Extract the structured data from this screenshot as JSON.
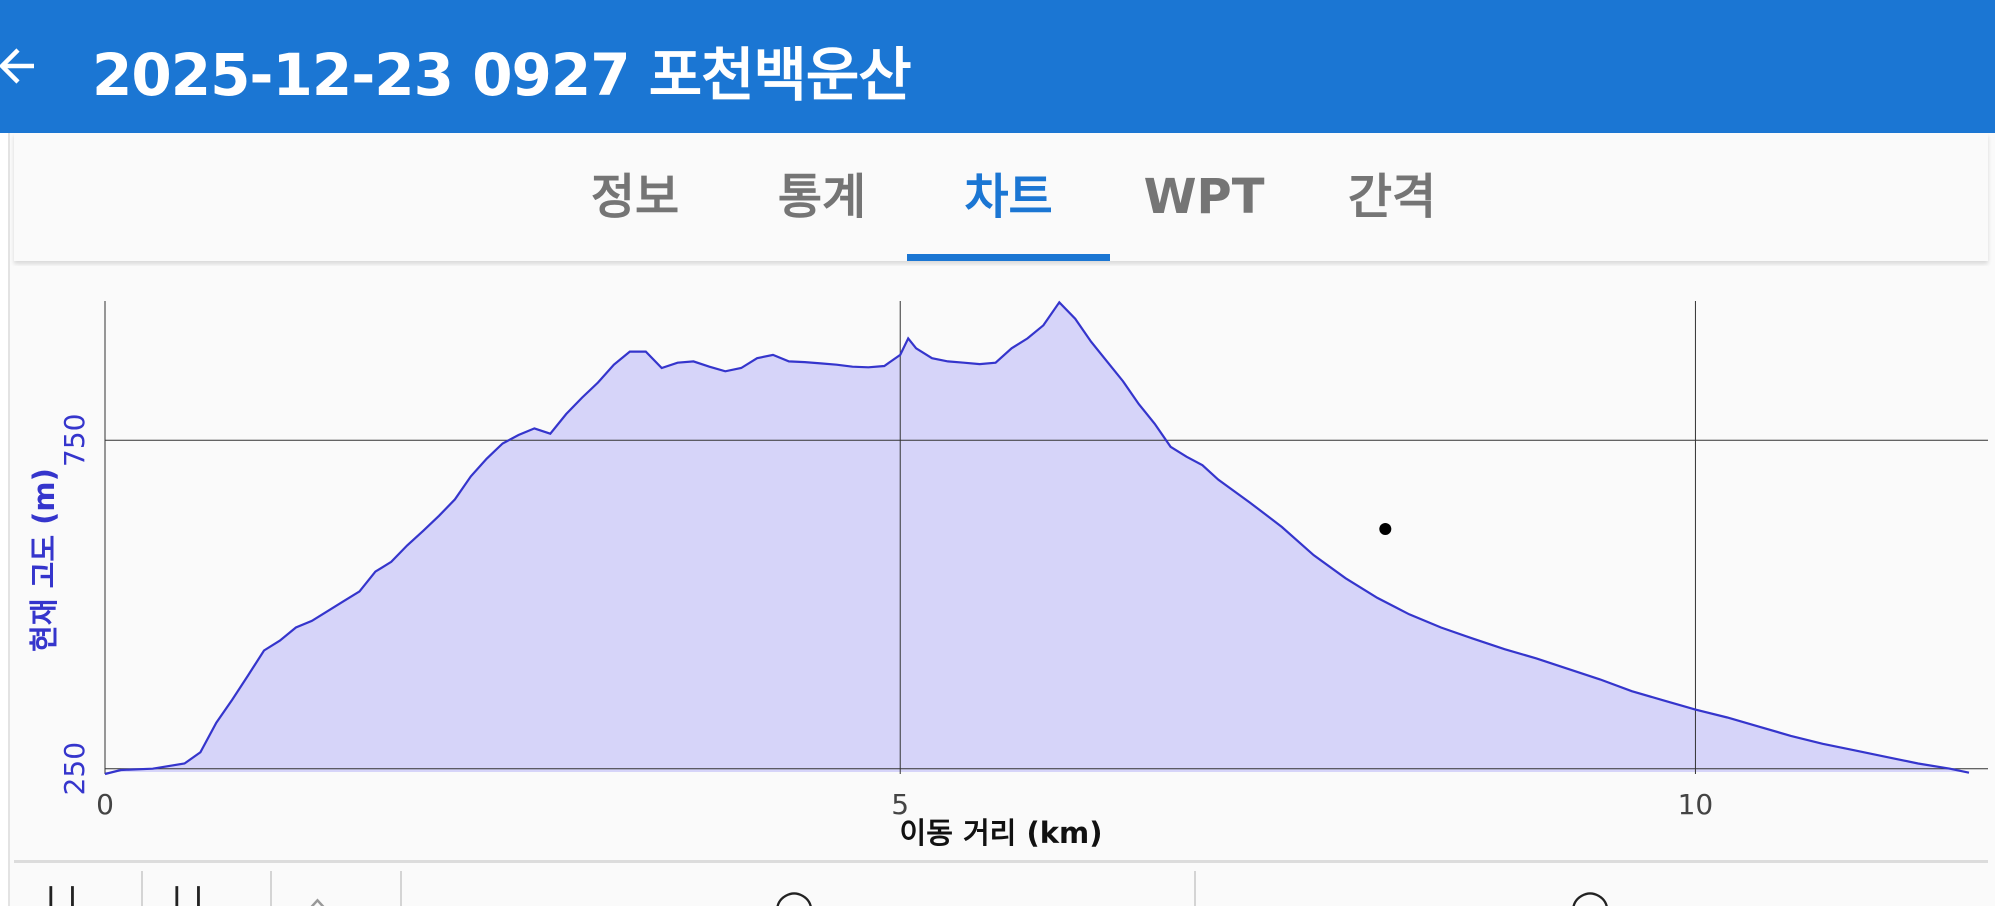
{
  "app_bar": {
    "title": "2025-12-23 0927 포천백운산",
    "back_icon": "arrow-left-icon",
    "background": "#1b76d3"
  },
  "tabs": [
    {
      "label": "정보",
      "active": false
    },
    {
      "label": "통계",
      "active": false
    },
    {
      "label": "차트",
      "active": true
    },
    {
      "label": "WPT",
      "active": false
    },
    {
      "label": "간격",
      "active": false
    }
  ],
  "colors": {
    "accent": "#1b76d3",
    "series_line": "#3535cc",
    "series_fill": "#d6d4f9",
    "ylabel": "#3535cc"
  },
  "chart_data": {
    "type": "area",
    "title": "",
    "xlabel": "이동 거리 (km)",
    "ylabel": "현재 고도 (m)",
    "xlim": [
      0,
      11.72
    ],
    "ylim": [
      245,
      962
    ],
    "x_ticks": [
      0,
      5,
      10
    ],
    "y_ticks": [
      250,
      750
    ],
    "grid": true,
    "series": [
      {
        "x": [
          0,
          0.1,
          0.3,
          0.5,
          0.6,
          0.7,
          0.8,
          0.9,
          1.0,
          1.1,
          1.2,
          1.3,
          1.4,
          1.5,
          1.6,
          1.7,
          1.8,
          1.9,
          2.0,
          2.1,
          2.2,
          2.3,
          2.4,
          2.5,
          2.6,
          2.7,
          2.8,
          2.9,
          3.0,
          3.1,
          3.2,
          3.3,
          3.4,
          3.5,
          3.6,
          3.7,
          3.8,
          3.9,
          4.0,
          4.1,
          4.2,
          4.3,
          4.4,
          4.5,
          4.6,
          4.7,
          4.8,
          4.9,
          5.0,
          5.05,
          5.1,
          5.2,
          5.3,
          5.4,
          5.5,
          5.6,
          5.7,
          5.8,
          5.9,
          6.0,
          6.1,
          6.2,
          6.3,
          6.4,
          6.5,
          6.6,
          6.7,
          6.8,
          6.9,
          7.0,
          7.2,
          7.4,
          7.6,
          7.8,
          8.0,
          8.2,
          8.4,
          8.6,
          8.8,
          9.0,
          9.2,
          9.4,
          9.6,
          9.8,
          10.0,
          10.2,
          10.4,
          10.6,
          10.8,
          11.0,
          11.2,
          11.4,
          11.6,
          11.72
        ],
        "y": [
          242,
          248,
          250,
          258,
          275,
          320,
          355,
          392,
          430,
          445,
          465,
          475,
          490,
          505,
          520,
          550,
          565,
          590,
          612,
          635,
          660,
          695,
          722,
          745,
          758,
          768,
          760,
          790,
          815,
          838,
          865,
          885,
          885,
          860,
          868,
          870,
          862,
          855,
          860,
          875,
          880,
          870,
          869,
          867,
          865,
          862,
          861,
          863,
          880,
          905,
          890,
          875,
          870,
          868,
          866,
          868,
          890,
          905,
          925,
          960,
          935,
          900,
          870,
          840,
          805,
          775,
          740,
          725,
          712,
          690,
          655,
          618,
          575,
          540,
          510,
          485,
          465,
          448,
          432,
          418,
          402,
          386,
          368,
          354,
          340,
          328,
          314,
          300,
          288,
          278,
          268,
          258,
          250,
          244
        ]
      }
    ],
    "marker": {
      "x": 8.05,
      "y": 615
    }
  }
}
